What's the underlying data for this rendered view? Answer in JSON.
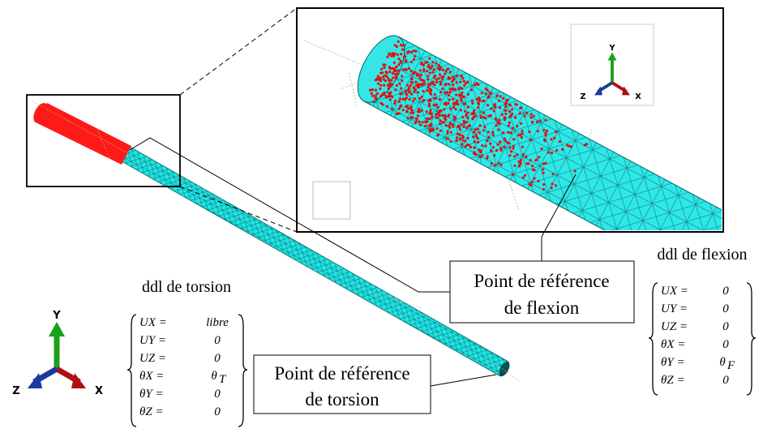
{
  "torsion": {
    "title": "ddl de torsion",
    "dofs": [
      {
        "name": "UX =",
        "value": "libre"
      },
      {
        "name": "UY =",
        "value": "0"
      },
      {
        "name": "UZ =",
        "value": "0"
      },
      {
        "name": "θX =",
        "value": "θ",
        "sub": "T"
      },
      {
        "name": "θY =",
        "value": "0"
      },
      {
        "name": "θZ =",
        "value": "0"
      }
    ]
  },
  "flexion": {
    "title": "ddl de flexion",
    "dofs": [
      {
        "name": "UX =",
        "value": "0"
      },
      {
        "name": "UY =",
        "value": "0"
      },
      {
        "name": "UZ =",
        "value": "0"
      },
      {
        "name": "θX =",
        "value": "0"
      },
      {
        "name": "θY =",
        "value": "θ",
        "sub": "F"
      },
      {
        "name": "θZ =",
        "value": "0"
      }
    ]
  },
  "callouts": {
    "flexion": [
      "Point de référence",
      "de flexion"
    ],
    "torsion": [
      "Point de référence",
      "de torsion"
    ]
  },
  "axes_main": {
    "y": "Y",
    "z": "Z",
    "x": "X"
  },
  "axes_inset": {
    "y": "Y",
    "z": "Z",
    "x": "X"
  }
}
